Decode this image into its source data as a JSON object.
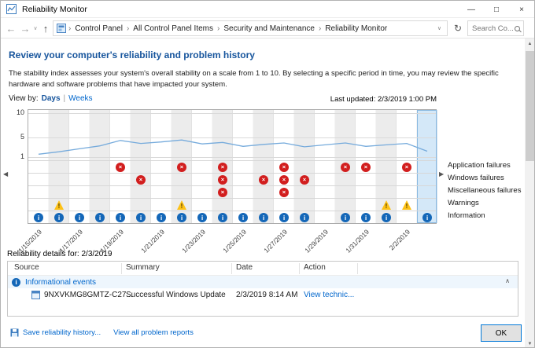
{
  "window": {
    "title": "Reliability Monitor"
  },
  "glyphs": {
    "minimize": "—",
    "maximize": "□",
    "close": "×",
    "back": "←",
    "forward": "→",
    "up": "↑",
    "refresh": "↻",
    "chevron_right": "›",
    "chevron_down": "∨",
    "scroll_left": "◀",
    "scroll_right": "▶",
    "scroll_up": "▲",
    "scroll_down": "▼",
    "collapse": "∧",
    "error_x": "×",
    "warning_mark": "!",
    "info_i": "i"
  },
  "nav": {
    "breadcrumb": [
      "Control Panel",
      "All Control Panel Items",
      "Security and Maintenance",
      "Reliability Monitor"
    ],
    "search_placeholder": "Search Co..."
  },
  "main": {
    "heading": "Review your computer's reliability and problem history",
    "description": "The stability index assesses your system's overall stability on a scale from 1 to 10. By selecting a specific period in time, you may review the specific hardware and software problems that have impacted your system.",
    "view_by_label": "View by:",
    "view_days": "Days",
    "view_pipe": "|",
    "view_weeks": "Weeks",
    "last_updated": "Last updated: 2/3/2019 1:00 PM"
  },
  "chart_data": {
    "type": "line",
    "title": "Stability index",
    "ylim": [
      1,
      10
    ],
    "yticks": [
      "10",
      "5",
      "1"
    ],
    "grid": true,
    "legend_position": "right",
    "x": [
      "1/15/2019",
      "1/16/2019",
      "1/17/2019",
      "1/18/2019",
      "1/19/2019",
      "1/20/2019",
      "1/21/2019",
      "1/22/2019",
      "1/23/2019",
      "1/24/2019",
      "1/25/2019",
      "1/26/2019",
      "1/27/2019",
      "1/28/2019",
      "1/29/2019",
      "1/30/2019",
      "1/31/2019",
      "2/1/2019",
      "2/2/2019",
      "2/3/2019"
    ],
    "tick_every": 2,
    "series": [
      {
        "name": "Stability index",
        "values": [
          1.6,
          2.1,
          2.7,
          3.3,
          4.4,
          3.8,
          4.1,
          4.5,
          3.7,
          4.0,
          3.2,
          3.6,
          3.9,
          3.1,
          3.5,
          3.9,
          3.2,
          3.5,
          3.8,
          2.2
        ]
      }
    ],
    "selected_day_index": 19,
    "selected_date": "2/3/2019",
    "event_rows": [
      {
        "name": "Application failures",
        "icon": "error",
        "day_indices": [
          4,
          7,
          9,
          12,
          15,
          16,
          18
        ]
      },
      {
        "name": "Windows failures",
        "icon": "error",
        "day_indices": [
          5,
          9,
          11,
          12,
          13
        ]
      },
      {
        "name": "Miscellaneous failures",
        "icon": "error",
        "day_indices": [
          9,
          12
        ]
      },
      {
        "name": "Warnings",
        "icon": "warning",
        "day_indices": [
          1,
          7,
          17,
          18
        ]
      },
      {
        "name": "Information",
        "icon": "info",
        "day_indices": [
          0,
          1,
          2,
          3,
          4,
          5,
          6,
          7,
          8,
          9,
          10,
          11,
          12,
          13,
          15,
          16,
          17,
          19
        ]
      }
    ]
  },
  "details": {
    "label": "Reliability details for: 2/3/2019",
    "columns": [
      "Source",
      "Summary",
      "Date",
      "Action"
    ],
    "group_label": "Informational events",
    "rows": [
      {
        "source": "9NXVKMG8GMTZ-C27...",
        "summary": "Successful Windows Update",
        "date": "2/3/2019 8:14 AM",
        "action": "View technic..."
      }
    ]
  },
  "footer": {
    "save_link": "Save reliability history...",
    "view_link": "View all problem reports",
    "ok_label": "OK"
  },
  "colors": {
    "heading_blue": "#17559d",
    "link_blue": "#0066cc",
    "line_blue": "#76abdc",
    "error_red": "#d21e1e",
    "warning_yellow": "#fdc116",
    "info_blue": "#1467b8",
    "selected_column": "#d4e8f8"
  }
}
